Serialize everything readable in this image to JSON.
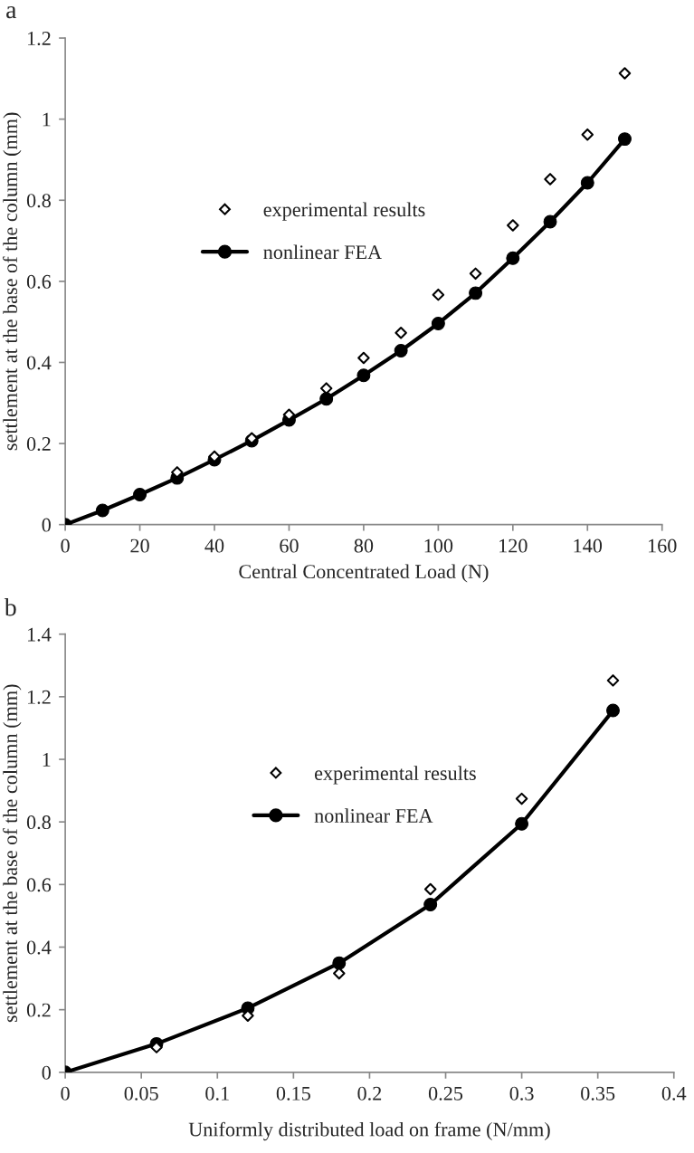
{
  "chart_data": [
    {
      "type": "line",
      "title": "a",
      "xlabel": "Central Concentrated Load (N)",
      "ylabel": "settlement at the base of the column (mm)",
      "xlim": [
        0,
        160
      ],
      "xticks": [
        0,
        20,
        40,
        60,
        80,
        100,
        120,
        140,
        160
      ],
      "ylim": [
        0,
        1.2
      ],
      "yticks": [
        0,
        0.2,
        0.4,
        0.6,
        0.8,
        1,
        1.2
      ],
      "grid": false,
      "legend": "center left",
      "series": [
        {
          "name": "experimental results",
          "type": "scatter",
          "marker": "diamond",
          "color": "#000000",
          "x": [
            30,
            40,
            50,
            60,
            70,
            80,
            90,
            100,
            110,
            120,
            130,
            140,
            150
          ],
          "values": [
            0.129,
            0.168,
            0.213,
            0.271,
            0.336,
            0.411,
            0.473,
            0.567,
            0.619,
            0.738,
            0.852,
            0.962,
            1.113
          ]
        },
        {
          "name": "nonlinear FEA",
          "type": "line",
          "marker": "circle",
          "line_style": "solid",
          "color": "#000000",
          "x": [
            0,
            10,
            20,
            30,
            40,
            50,
            60,
            70,
            80,
            90,
            100,
            110,
            120,
            130,
            140,
            150
          ],
          "values": [
            0,
            0.035,
            0.074,
            0.115,
            0.16,
            0.207,
            0.258,
            0.31,
            0.368,
            0.429,
            0.496,
            0.571,
            0.657,
            0.747,
            0.843,
            0.951
          ]
        }
      ]
    },
    {
      "type": "line",
      "title": "b",
      "xlabel": "Uniformly distributed load on frame (N/mm)",
      "ylabel": "settlement at the base of the column (mm)",
      "xlim": [
        0,
        0.4
      ],
      "xticks": [
        0,
        0.05,
        0.1,
        0.15,
        0.2,
        0.25,
        0.3,
        0.35,
        0.4
      ],
      "ylim": [
        0,
        1.4
      ],
      "yticks": [
        0,
        0.2,
        0.4,
        0.6,
        0.8,
        1,
        1.2,
        1.4
      ],
      "grid": false,
      "legend": "center",
      "series": [
        {
          "name": "experimental results",
          "type": "scatter",
          "marker": "diamond",
          "color": "#000000",
          "x": [
            0.06,
            0.12,
            0.18,
            0.24,
            0.3,
            0.36
          ],
          "values": [
            0.08,
            0.181,
            0.316,
            0.585,
            0.874,
            1.252
          ]
        },
        {
          "name": "nonlinear FEA",
          "type": "line",
          "marker": "circle",
          "line_style": "solid",
          "color": "#000000",
          "x": [
            0,
            0.06,
            0.12,
            0.18,
            0.24,
            0.3,
            0.36
          ],
          "values": [
            0,
            0.091,
            0.205,
            0.349,
            0.536,
            0.794,
            1.156
          ]
        }
      ]
    }
  ]
}
